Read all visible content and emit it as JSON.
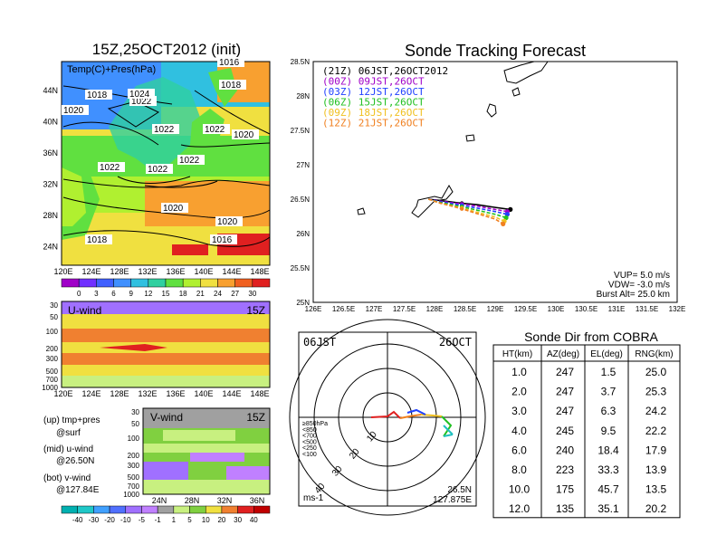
{
  "left_panel": {
    "title": "15Z,25OCT2012 (init)",
    "map_label": "Temp(C)+Pres(hPa)",
    "lat_ticks": [
      "44N",
      "40N",
      "36N",
      "32N",
      "28N",
      "24N"
    ],
    "lon_ticks": [
      "120E",
      "124E",
      "128E",
      "132E",
      "136E",
      "140E",
      "144E",
      "148E"
    ],
    "isobars": [
      "1016",
      "1018",
      "1022",
      "1024",
      "1020",
      "1022",
      "1022",
      "1020",
      "1022",
      "1022",
      "1022",
      "1020",
      "1020",
      "1018",
      "1018",
      "1016"
    ],
    "temp_scale": [
      "0",
      "3",
      "6",
      "9",
      "12",
      "15",
      "18",
      "21",
      "24",
      "27",
      "30"
    ],
    "temp_colors": [
      "#a000c8",
      "#7030ff",
      "#4060ff",
      "#4090ff",
      "#30c0e0",
      "#30d0a0",
      "#60e040",
      "#b0f030",
      "#f0e040",
      "#f8a030",
      "#f06020",
      "#e02020"
    ],
    "uwind": {
      "title": "U-wind",
      "time": "15Z",
      "y_ticks": [
        "30",
        "50",
        "100",
        "200",
        "300",
        "500",
        "700",
        "1000"
      ]
    },
    "vwind": {
      "title": "V-wind",
      "time": "15Z",
      "y_ticks": [
        "30",
        "50",
        "100",
        "200",
        "300",
        "500",
        "700",
        "1000"
      ],
      "x_ticks": [
        "24N",
        "28N",
        "32N",
        "36N"
      ]
    },
    "notes": [
      "(up) tmp+pres",
      "@surf",
      "(mid) u-wind",
      "@26.50N",
      "(bot) v-wind",
      "@127.84E"
    ],
    "wind_scale": [
      "-40",
      "-30",
      "-20",
      "-10",
      "-5",
      "-1",
      "1",
      "5",
      "10",
      "20",
      "30",
      "40"
    ],
    "wind_colors": [
      "#00b0b0",
      "#1fc8c8",
      "#40a0ff",
      "#5070ff",
      "#a070ff",
      "#c080ff",
      "#a0a0a0",
      "#c8f080",
      "#80d040",
      "#f0e040",
      "#f08030",
      "#e02020",
      "#c00000"
    ]
  },
  "tracking": {
    "title": "Sonde Tracking Forecast",
    "lat_ticks": [
      "28.5N",
      "28N",
      "27.5N",
      "27N",
      "26.5N",
      "26N",
      "25.5N",
      "25N"
    ],
    "lon_ticks": [
      "126E",
      "126.5E",
      "127E",
      "127.5E",
      "128E",
      "128.5E",
      "129E",
      "129.5E",
      "130E",
      "130.5E",
      "131E",
      "131.5E",
      "132E"
    ],
    "legend": [
      {
        "text": "(21Z)  06JST,26OCT2012",
        "color": "#000000"
      },
      {
        "text": "(00Z)  09JST,26OCT",
        "color": "#a000c8"
      },
      {
        "text": "(03Z)  12JST,26OCT",
        "color": "#2040ff"
      },
      {
        "text": "(06Z)  15JST,26OCT",
        "color": "#20c020"
      },
      {
        "text": "(09Z)  18JST,26OCT",
        "color": "#f0c020"
      },
      {
        "text": "(12Z)  21JST,26OCT",
        "color": "#f08020"
      }
    ],
    "params": [
      "VUP=  5.0  m/s",
      "VDW=  -3.0  m/s",
      "Burst Alt=  25.0  km"
    ]
  },
  "polar": {
    "time": "06JST",
    "date": "26OCT",
    "ring_labels": [
      "10",
      "20",
      "30",
      "40"
    ],
    "levels": [
      {
        "text": "≥850hPa",
        "color": "#e02020"
      },
      {
        "text": "<850",
        "color": "#f08020"
      },
      {
        "text": "<700",
        "color": "#f0c020"
      },
      {
        "text": "<500",
        "color": "#20c020"
      },
      {
        "text": "<250",
        "color": "#20c0c0"
      },
      {
        "text": "<100",
        "color": "#2040ff"
      }
    ],
    "unit": "ms-1",
    "lat": "26.5N",
    "lon": "127.875E"
  },
  "table": {
    "title": "Sonde Dir from COBRA",
    "headers": [
      "HT(km)",
      "AZ(deg)",
      "EL(deg)",
      "RNG(km)"
    ],
    "rows": [
      [
        "1.0",
        "247",
        "1.5",
        "25.0"
      ],
      [
        "2.0",
        "247",
        "3.7",
        "25.3"
      ],
      [
        "3.0",
        "247",
        "6.3",
        "24.2"
      ],
      [
        "4.0",
        "245",
        "9.5",
        "22.2"
      ],
      [
        "6.0",
        "240",
        "18.4",
        "17.9"
      ],
      [
        "8.0",
        "223",
        "33.3",
        "13.9"
      ],
      [
        "10.0",
        "175",
        "45.7",
        "13.5"
      ],
      [
        "12.0",
        "135",
        "35.1",
        "20.2"
      ]
    ]
  },
  "chart_data": {
    "type": "line",
    "title": "Sonde Tracking Forecast",
    "xlim": [
      126,
      132
    ],
    "ylim": [
      25,
      28.5
    ],
    "series": [
      {
        "name": "(21Z) 06JST,26OCT2012",
        "x": [
          127.9,
          128.1,
          128.45,
          128.7,
          129.0,
          129.25
        ],
        "y": [
          26.5,
          26.48,
          26.44,
          26.42,
          26.38,
          26.35
        ]
      },
      {
        "name": "(00Z) 09JST,26OCT",
        "x": [
          127.9,
          128.1,
          128.45,
          128.7,
          129.0,
          129.2
        ],
        "y": [
          26.5,
          26.47,
          26.43,
          26.4,
          26.35,
          26.32
        ]
      },
      {
        "name": "(03Z) 12JST,26OCT",
        "x": [
          127.9,
          128.1,
          128.45,
          128.7,
          129.0,
          129.2
        ],
        "y": [
          26.5,
          26.46,
          26.41,
          26.37,
          26.32,
          26.28
        ]
      },
      {
        "name": "(06Z) 15JST,26OCT",
        "x": [
          127.9,
          128.1,
          128.45,
          128.7,
          129.0,
          129.18
        ],
        "y": [
          26.5,
          26.45,
          26.39,
          26.34,
          26.28,
          26.23
        ]
      },
      {
        "name": "(09Z) 18JST,26OCT",
        "x": [
          127.9,
          128.1,
          128.45,
          128.7,
          129.0,
          129.15
        ],
        "y": [
          26.5,
          26.44,
          26.37,
          26.31,
          26.24,
          26.18
        ]
      },
      {
        "name": "(12Z) 21JST,26OCT",
        "x": [
          127.9,
          128.1,
          128.45,
          128.7,
          129.0,
          129.13
        ],
        "y": [
          26.5,
          26.44,
          26.36,
          26.29,
          26.21,
          26.14
        ]
      }
    ]
  }
}
